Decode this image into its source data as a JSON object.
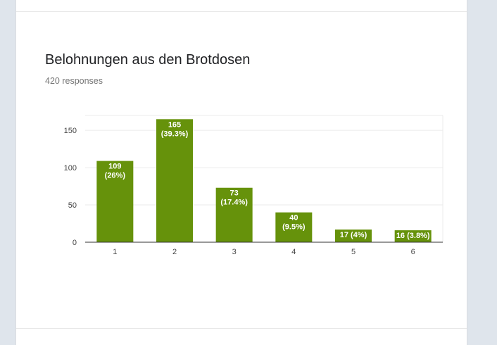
{
  "question": {
    "title": "Belohnungen aus den Brotdosen",
    "responses": "420 responses"
  },
  "colors": {
    "bar": "#66920b",
    "grid": "#ebebeb",
    "axis": "#333333"
  },
  "chart_data": {
    "type": "bar",
    "title": "Belohnungen aus den Brotdosen",
    "categories": [
      "1",
      "2",
      "3",
      "4",
      "5",
      "6"
    ],
    "values": [
      109,
      165,
      73,
      40,
      17,
      16
    ],
    "data_labels": [
      [
        "109",
        "(26%)"
      ],
      [
        "165",
        "(39.3%)"
      ],
      [
        "73",
        "(17.4%)"
      ],
      [
        "40",
        "(9.5%)"
      ],
      [
        "17 (4%)"
      ],
      [
        "16 (3.8%)"
      ]
    ],
    "yticks": [
      0,
      50,
      100,
      150
    ],
    "ylim": [
      0,
      170
    ],
    "xlabel": "",
    "ylabel": "",
    "grid": true,
    "legend": "none"
  }
}
